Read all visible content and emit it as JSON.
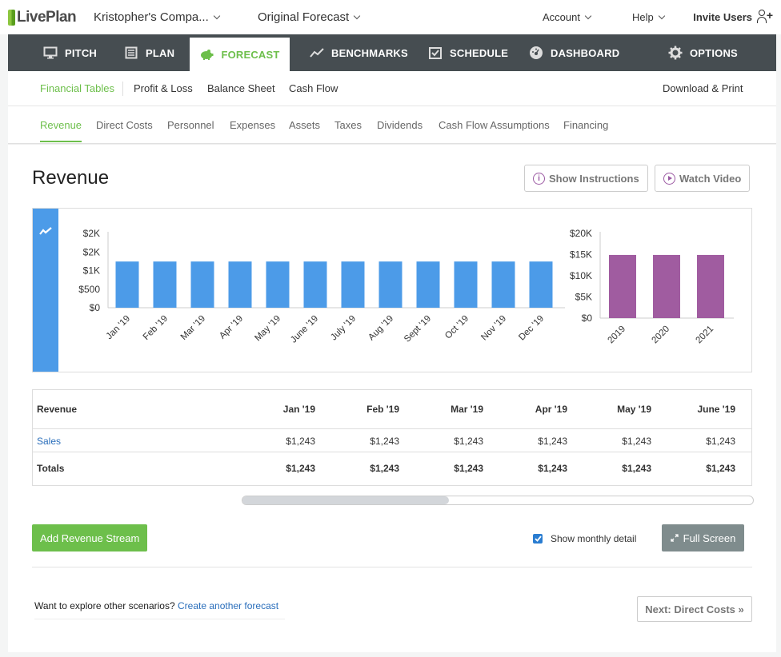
{
  "topbar": {
    "brand": "LivePlan",
    "company": "Kristopher's Compa...",
    "forecast": "Original Forecast",
    "account": "Account",
    "help": "Help",
    "invite": "Invite Users"
  },
  "mainnav": [
    {
      "label": "PITCH",
      "icon": "monitor-icon"
    },
    {
      "label": "PLAN",
      "icon": "document-icon"
    },
    {
      "label": "FORECAST",
      "icon": "piggy-bank-icon",
      "active": true
    },
    {
      "label": "BENCHMARKS",
      "icon": "trend-line-icon"
    },
    {
      "label": "SCHEDULE",
      "icon": "calendar-check-icon"
    },
    {
      "label": "DASHBOARD",
      "icon": "gauge-icon"
    },
    {
      "label": "OPTIONS",
      "icon": "gear-icon"
    }
  ],
  "subnav1": {
    "items": [
      "Financial Tables",
      "Profit & Loss",
      "Balance Sheet",
      "Cash Flow"
    ],
    "download": "Download & Print"
  },
  "subnav2": [
    "Revenue",
    "Direct Costs",
    "Personnel",
    "Expenses",
    "Assets",
    "Taxes",
    "Dividends",
    "Cash Flow Assumptions",
    "Financing"
  ],
  "page": {
    "title": "Revenue",
    "show_instructions": "Show Instructions",
    "watch_video": "Watch Video"
  },
  "colors": {
    "accent": "#6dbf4b",
    "nav_bg": "#464d51",
    "monthly_bar": "#4c9be8",
    "annual_bar": "#a05ca0",
    "link": "#2a6ebb"
  },
  "chart_data": [
    {
      "type": "bar",
      "categories": [
        "Jan '19",
        "Feb '19",
        "Mar '19",
        "Apr '19",
        "May '19",
        "June '19",
        "July '19",
        "Aug '19",
        "Sept '19",
        "Oct '19",
        "Nov '19",
        "Dec '19"
      ],
      "values": [
        1243,
        1243,
        1243,
        1243,
        1243,
        1243,
        1243,
        1243,
        1243,
        1243,
        1243,
        1243
      ],
      "yticks": [
        "$0",
        "$500",
        "$1K",
        "$2K",
        "$2K"
      ],
      "ylim": [
        0,
        2000
      ]
    },
    {
      "type": "bar",
      "categories": [
        "2019",
        "2020",
        "2021"
      ],
      "values": [
        14916,
        14916,
        14916
      ],
      "yticks": [
        "$0",
        "$5K",
        "$10K",
        "$15K",
        "$20K"
      ],
      "ylim": [
        0,
        20000
      ]
    }
  ],
  "table": {
    "header_label": "Revenue",
    "columns": [
      "Jan '19",
      "Feb '19",
      "Mar '19",
      "Apr '19",
      "May '19",
      "June '19"
    ],
    "rows": [
      {
        "label": "Sales",
        "values": [
          "$1,243",
          "$1,243",
          "$1,243",
          "$1,243",
          "$1,243",
          "$1,243"
        ]
      },
      {
        "label": "Totals",
        "values": [
          "$1,243",
          "$1,243",
          "$1,243",
          "$1,243",
          "$1,243",
          "$1,243"
        ]
      }
    ]
  },
  "actions": {
    "add_stream": "Add Revenue Stream",
    "show_monthly": "Show monthly detail",
    "full_screen": "Full Screen"
  },
  "footer": {
    "explore_text": "Want to explore other scenarios?",
    "explore_link": "Create another forecast",
    "next": "Next: Direct Costs »"
  }
}
